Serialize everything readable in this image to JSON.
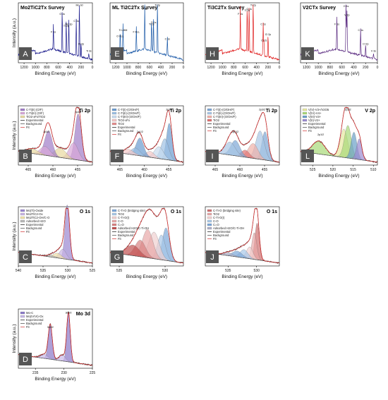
{
  "charts": [
    {
      "id": "A",
      "x": [
        1300,
        0
      ],
      "ticks": [
        1200,
        1000,
        800,
        600,
        400,
        200,
        0
      ],
      "xlabel": "Binding Energy (eV)",
      "ylabel": "Intensity (a.u.)",
      "title": "Mo2TiC2Tx Survey",
      "color": "#1b1b8c",
      "kind": "survey",
      "panel": "survey",
      "peaks": [
        {
          "e": 530,
          "h": 0.72,
          "label": "O 1s"
        },
        {
          "e": 460,
          "h": 0.52,
          "label": "Ti 2p"
        },
        {
          "e": 414,
          "h": 0.55,
          "label": "Mo 3p"
        },
        {
          "e": 229,
          "h": 0.9,
          "label": "Mo 3d"
        },
        {
          "e": 284,
          "h": 0.6,
          "label": "C 1s"
        },
        {
          "e": 685,
          "h": 0.42,
          "label": "F 1s"
        },
        {
          "e": 63,
          "h": 0.1,
          "label": "Ti 3s"
        },
        {
          "e": 199,
          "h": 0.22,
          "label": "Cl 2p"
        }
      ]
    },
    {
      "id": "E",
      "x": [
        1300,
        0
      ],
      "ticks": [
        1200,
        1000,
        800,
        600,
        400,
        200,
        0
      ],
      "xlabel": "Binding Energy (eV)",
      "ylabel": "",
      "title": "ML Ti2C2Tx Survey",
      "color": "#1c5aa8",
      "kind": "survey",
      "panel": "survey",
      "peaks": [
        {
          "e": 685,
          "h": 0.8,
          "label": "F 1s"
        },
        {
          "e": 460,
          "h": 0.95,
          "label": "Ti 2p"
        },
        {
          "e": 530,
          "h": 0.58,
          "label": "O 1s"
        },
        {
          "e": 565,
          "h": 0.55,
          "label": "Ti 2s"
        },
        {
          "e": 284,
          "h": 0.3,
          "label": "C 1s"
        },
        {
          "e": 834,
          "h": 0.42,
          "label": "F KLL"
        },
        {
          "e": 1070,
          "h": 0.45,
          "label": "Ti LMM"
        },
        {
          "e": 1120,
          "h": 0.35,
          "label": "O KLL"
        }
      ]
    },
    {
      "id": "H",
      "x": [
        1300,
        0
      ],
      "ticks": [
        1200,
        1000,
        800,
        600,
        400,
        200,
        0
      ],
      "xlabel": "Binding Energy (eV)",
      "ylabel": "",
      "title": "Ti3C2Tx Survey",
      "color": "#e02020",
      "kind": "survey",
      "panel": "survey",
      "peaks": [
        {
          "e": 685,
          "h": 0.72,
          "label": "F 1s"
        },
        {
          "e": 460,
          "h": 0.95,
          "label": "Ti 2p"
        },
        {
          "e": 530,
          "h": 0.8,
          "label": "O 1s"
        },
        {
          "e": 565,
          "h": 0.78,
          "label": "Ti 2s"
        },
        {
          "e": 284,
          "h": 0.55,
          "label": "C 1s"
        },
        {
          "e": 199,
          "h": 0.38,
          "label": "Cl 2p"
        },
        {
          "e": 270,
          "h": 0.28,
          "label": "Cl 2s"
        }
      ]
    },
    {
      "id": "K",
      "x": [
        1300,
        0
      ],
      "ticks": [
        1200,
        1000,
        800,
        600,
        400,
        200,
        0
      ],
      "xlabel": "Binding Energy (eV)",
      "ylabel": "",
      "title": "V2CTx Survey",
      "color": "#5a2a80",
      "kind": "survey",
      "panel": "survey",
      "peaks": [
        {
          "e": 530,
          "h": 0.85,
          "label": "O 1s"
        },
        {
          "e": 515,
          "h": 0.7,
          "label": "V 2p"
        },
        {
          "e": 685,
          "h": 0.55,
          "label": "F 1s"
        },
        {
          "e": 284,
          "h": 0.45,
          "label": "C 1s"
        },
        {
          "e": 199,
          "h": 0.22,
          "label": "Cl 2p"
        },
        {
          "e": 66,
          "h": 0.1,
          "label": "V 3s"
        }
      ]
    },
    {
      "id": "B",
      "x": [
        467,
        452
      ],
      "ticks": [
        465,
        460,
        455
      ],
      "xlabel": "Binding Energy (eV)",
      "ylabel": "Intensity (a.u.)",
      "title": "Ti 2p",
      "color": "#c0392b",
      "kind": "hr",
      "legend": [
        "C-Ti(II) (O/F)",
        "C-Ti(III) (O/F)",
        "TiO2-xFx/TiO2",
        "Experimental",
        "Background",
        "Fit"
      ],
      "comp_colors": [
        "#a07cc8",
        "#d8a6d8",
        "#e8d8a0"
      ],
      "peaks": [
        {
          "e": 454.9,
          "h": 0.78,
          "w": 0.9,
          "c": 0
        },
        {
          "e": 455.8,
          "h": 0.28,
          "w": 1.3,
          "c": 1
        },
        {
          "e": 458.5,
          "h": 0.16,
          "w": 1.6,
          "c": 2
        },
        {
          "e": 460.9,
          "h": 0.42,
          "w": 1.1,
          "c": 0
        },
        {
          "e": 461.6,
          "h": 0.15,
          "w": 1.4,
          "c": 1
        },
        {
          "e": 464.2,
          "h": 0.08,
          "w": 1.8,
          "c": 2
        }
      ],
      "ann": [
        {
          "e": 461.3,
          "h": 0.55,
          "label": "2p1/2"
        },
        {
          "e": 454.9,
          "h": 0.88,
          "label": "2p3/2"
        }
      ]
    },
    {
      "id": "F",
      "x": [
        467,
        452
      ],
      "ticks": [
        465,
        460,
        455
      ],
      "xlabel": "Binding Energy (eV)",
      "ylabel": "",
      "title": "Ti 2p",
      "color": "#c0392b",
      "kind": "hr",
      "legend": [
        "C-Ti(I)-(O/OH/F)",
        "C-Ti(II)-(O/OH/F)",
        "C-Ti(III)-(O/OH/F)",
        "TiO2-xFx",
        "TiO2",
        "Experimental",
        "Background",
        "Fit"
      ],
      "comp_colors": [
        "#6a9bd0",
        "#9cc0e4",
        "#c8dcf0",
        "#f3c7c7",
        "#e58c8c"
      ],
      "peaks": [
        {
          "e": 454.9,
          "h": 0.62,
          "w": 0.8,
          "c": 0
        },
        {
          "e": 455.8,
          "h": 0.35,
          "w": 1.1,
          "c": 1
        },
        {
          "e": 457.0,
          "h": 0.2,
          "w": 1.3,
          "c": 2
        },
        {
          "e": 458.8,
          "h": 0.1,
          "w": 1.2,
          "c": 3
        },
        {
          "e": 460.9,
          "h": 0.3,
          "w": 1.1,
          "c": 0
        },
        {
          "e": 461.8,
          "h": 0.12,
          "w": 1.3,
          "c": 1
        },
        {
          "e": 463.2,
          "h": 0.08,
          "w": 1.5,
          "c": 3
        }
      ],
      "ann": [
        {
          "e": 460.9,
          "h": 0.55,
          "label": "2p1/2"
        },
        {
          "e": 454.9,
          "h": 0.92,
          "label": "2p3/2"
        }
      ]
    },
    {
      "id": "I",
      "x": [
        467,
        452
      ],
      "ticks": [
        465,
        460,
        455
      ],
      "xlabel": "Binding Energy (eV)",
      "ylabel": "",
      "title": "Ti 2p",
      "color": "#c0392b",
      "kind": "hr",
      "legend": [
        "C-Ti(I)-(O/OH/F)",
        "C-Ti(II)-(O/OH/F)",
        "C-Ti(III)-(O/OH/F)",
        "TiO2",
        "Experimental",
        "Background",
        "Fit"
      ],
      "comp_colors": [
        "#7da6d6",
        "#a8c6e6",
        "#f0b0a8",
        "#e07070"
      ],
      "peaks": [
        {
          "e": 454.9,
          "h": 0.48,
          "w": 0.9,
          "c": 0
        },
        {
          "e": 455.9,
          "h": 0.48,
          "w": 1.2,
          "c": 1
        },
        {
          "e": 457.3,
          "h": 0.25,
          "w": 1.4,
          "c": 2
        },
        {
          "e": 458.9,
          "h": 0.12,
          "w": 1.2,
          "c": 3
        },
        {
          "e": 460.9,
          "h": 0.26,
          "w": 1.3,
          "c": 0
        },
        {
          "e": 462.0,
          "h": 0.22,
          "w": 1.5,
          "c": 1
        }
      ],
      "ann": [
        {
          "e": 460.9,
          "h": 0.55,
          "label": "2p1/2"
        },
        {
          "e": 455.5,
          "h": 0.92,
          "label": "2p3/2"
        }
      ]
    },
    {
      "id": "L",
      "x": [
        528,
        509
      ],
      "ticks": [
        525,
        520,
        515,
        510
      ],
      "xlabel": "Binding Energy (eV)",
      "ylabel": "",
      "title": "V 2p",
      "color": "#c0392b",
      "kind": "hr",
      "legend": [
        "V(V)-V3+/V2O5",
        "V(IV)-V4+",
        "V(III)-V3+",
        "V(II)-V2+",
        "Experimental",
        "Background",
        "Fit"
      ],
      "comp_colors": [
        "#e8e8a0",
        "#a8d878",
        "#6aa0c8",
        "#9a8ad0"
      ],
      "peaks": [
        {
          "e": 517.3,
          "h": 0.48,
          "w": 1.3,
          "c": 0
        },
        {
          "e": 516.3,
          "h": 0.55,
          "w": 1.2,
          "c": 1
        },
        {
          "e": 514.8,
          "h": 0.45,
          "w": 1.0,
          "c": 2
        },
        {
          "e": 513.5,
          "h": 0.35,
          "w": 0.9,
          "c": 3
        },
        {
          "e": 523.5,
          "h": 0.22,
          "w": 2.2,
          "c": 1
        }
      ],
      "ann": [
        {
          "e": 523.0,
          "h": 0.5,
          "label": "2p1/2"
        },
        {
          "e": 516.3,
          "h": 0.92,
          "label": "2p3/2"
        }
      ]
    },
    {
      "id": "C",
      "x": [
        540,
        525
      ],
      "ticks": [
        540,
        535,
        530,
        525
      ],
      "xlabel": "Binding Energy (eV)",
      "ylabel": "Intensity (a.u.)",
      "title": "O 1s",
      "color": "#c0392b",
      "kind": "hr",
      "legend": [
        "Mo(Ti)-Oxide",
        "Mo2TiC2-Ox",
        "Mo2TiC2-OH/C-O",
        "Adsorbed H2O",
        "Experimental",
        "Background",
        "Fit"
      ],
      "comp_colors": [
        "#9a86d0",
        "#c8b4e4",
        "#f0e0a8",
        "#b8b8b8"
      ],
      "peaks": [
        {
          "e": 530.1,
          "h": 0.92,
          "w": 0.65,
          "c": 0
        },
        {
          "e": 531.0,
          "h": 0.16,
          "w": 1.0,
          "c": 1
        },
        {
          "e": 532.1,
          "h": 0.08,
          "w": 1.2,
          "c": 2
        },
        {
          "e": 533.4,
          "h": 0.03,
          "w": 1.2,
          "c": 3
        }
      ],
      "ann": []
    },
    {
      "id": "G",
      "x": [
        536,
        528
      ],
      "ticks": [
        535,
        530
      ],
      "xlabel": "Binding Energy (eV)",
      "ylabel": "",
      "title": "O 1s",
      "color": "#c0392b",
      "kind": "hr",
      "legend": [
        "C-Ti-O (bridging site)",
        "TiO2",
        "C-Ti-O(I)",
        "C-O",
        "C=O",
        "Adsorbed H2O/C-Ti-OH",
        "Experimental",
        "Background",
        "Fit"
      ],
      "comp_colors": [
        "#7aa6d8",
        "#a8c8e8",
        "#f0d0d0",
        "#e8a8a8",
        "#d88080",
        "#c05050"
      ],
      "peaks": [
        {
          "e": 529.9,
          "h": 0.55,
          "w": 0.55,
          "c": 0
        },
        {
          "e": 530.4,
          "h": 0.42,
          "w": 0.6,
          "c": 1
        },
        {
          "e": 531.2,
          "h": 0.45,
          "w": 0.8,
          "c": 2
        },
        {
          "e": 531.9,
          "h": 0.48,
          "w": 0.8,
          "c": 3
        },
        {
          "e": 532.7,
          "h": 0.28,
          "w": 0.8,
          "c": 4
        },
        {
          "e": 533.5,
          "h": 0.18,
          "w": 1.0,
          "c": 5
        }
      ],
      "ann": []
    },
    {
      "id": "J",
      "x": [
        539,
        526
      ],
      "ticks": [
        535,
        530
      ],
      "xlabel": "Binding Energy (eV)",
      "ylabel": "",
      "title": "O 1s",
      "color": "#c0392b",
      "kind": "hr",
      "legend": [
        "C-Ti-O (bridging site)",
        "TiO2",
        "C-Ti-O(I)",
        "C-O",
        "C=O",
        "Adsorbed H2O/C-Ti-OH",
        "Experimental",
        "Background",
        "Fit"
      ],
      "comp_colors": [
        "#d07070",
        "#e8a8a8",
        "#f2d0d0",
        "#a8c8e8",
        "#7aa6d8",
        "#b0b0c8"
      ],
      "peaks": [
        {
          "e": 529.9,
          "h": 0.62,
          "w": 0.55,
          "c": 0
        },
        {
          "e": 530.4,
          "h": 0.45,
          "w": 0.6,
          "c": 1
        },
        {
          "e": 531.2,
          "h": 0.2,
          "w": 0.8,
          "c": 2
        },
        {
          "e": 532.2,
          "h": 0.14,
          "w": 1.0,
          "c": 3
        },
        {
          "e": 533.4,
          "h": 0.1,
          "w": 1.2,
          "c": 4
        },
        {
          "e": 535.0,
          "h": 0.05,
          "w": 1.2,
          "c": 5
        }
      ],
      "ann": []
    },
    {
      "id": "D",
      "x": [
        238,
        225
      ],
      "ticks": [
        235,
        230,
        225
      ],
      "xlabel": "Binding Energy (eV)",
      "ylabel": "Intensity (a.u.)",
      "title": "Mo 3d",
      "color": "#c0392b",
      "kind": "hr",
      "legend": [
        "Mo-C",
        "Mo(IV/VI)-Ox",
        "Experimental",
        "Background",
        "Fit"
      ],
      "comp_colors": [
        "#8a78c8",
        "#c8b8e8"
      ],
      "peaks": [
        {
          "e": 229.2,
          "h": 0.82,
          "w": 0.45,
          "c": 0
        },
        {
          "e": 232.4,
          "h": 0.58,
          "w": 0.5,
          "c": 0
        },
        {
          "e": 230.3,
          "h": 0.1,
          "w": 0.8,
          "c": 1
        },
        {
          "e": 233.5,
          "h": 0.07,
          "w": 0.9,
          "c": 1
        }
      ],
      "ann": [
        {
          "e": 232.4,
          "h": 0.68,
          "label": "3d3/2"
        },
        {
          "e": 229.2,
          "h": 0.92,
          "label": "3d5/2"
        }
      ]
    }
  ],
  "colors": {
    "badge": "#555555",
    "fit": "#d03030",
    "experimental": "#111111",
    "background": "#444444"
  }
}
